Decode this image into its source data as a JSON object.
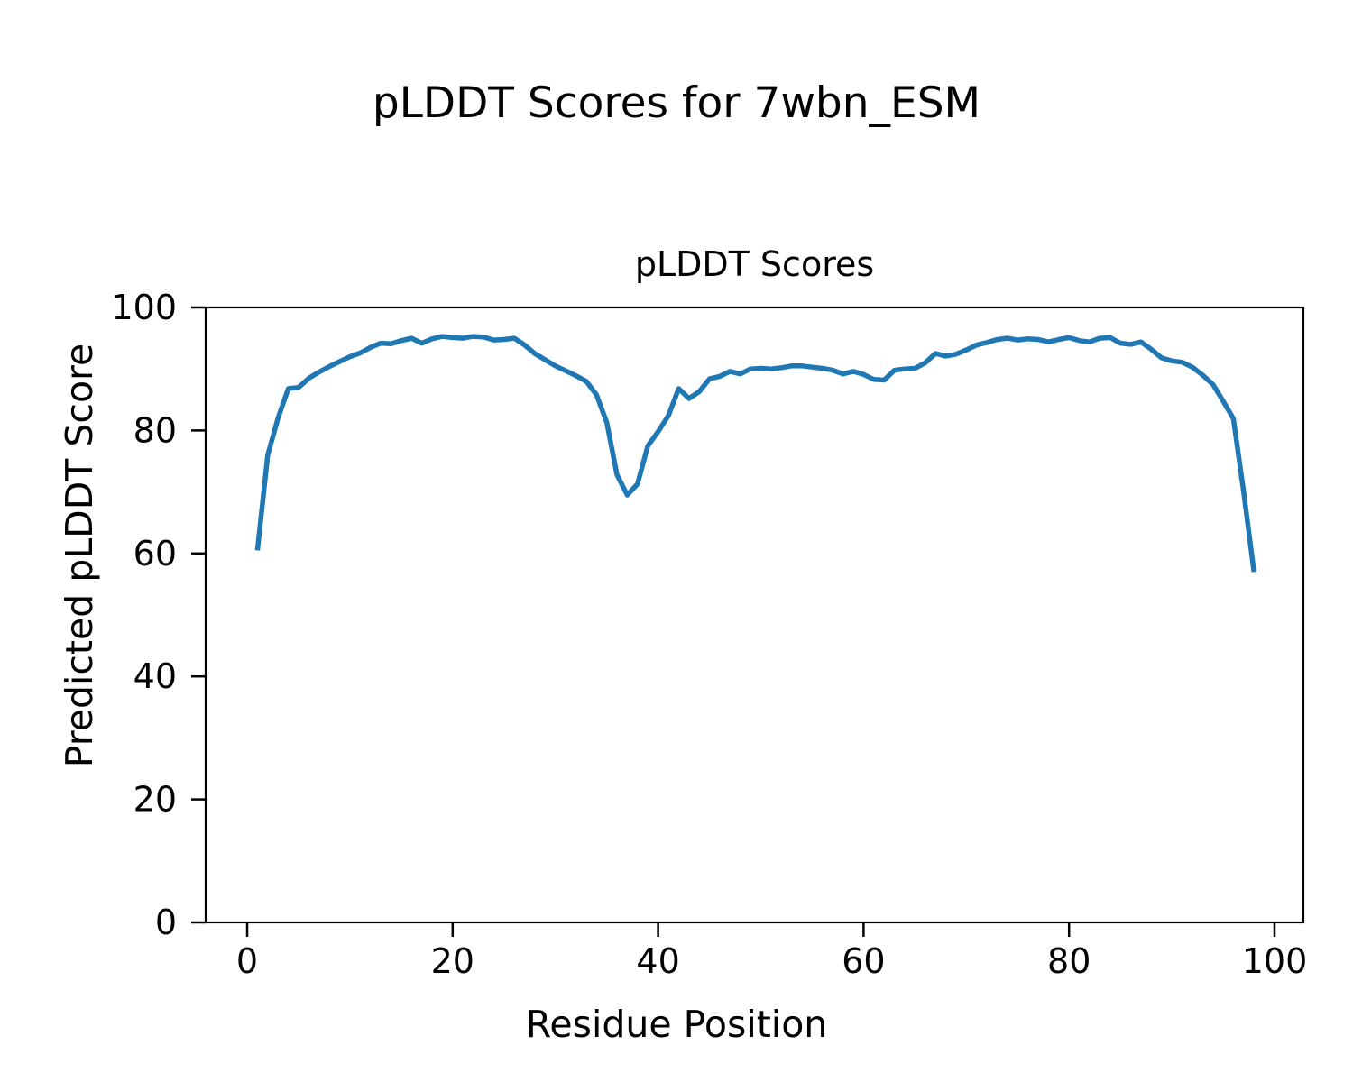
{
  "figure": {
    "title": "pLDDT Scores for 7wbn_ESM",
    "background": "#ffffff"
  },
  "chart_data": {
    "type": "line",
    "title": "pLDDT Scores",
    "xlabel": "Residue Position",
    "ylabel": "Predicted pLDDT Score",
    "xlim": [
      -4.04,
      102.81
    ],
    "ylim": [
      0,
      100
    ],
    "xticks": [
      0,
      20,
      40,
      60,
      80,
      100
    ],
    "yticks": [
      0,
      20,
      40,
      60,
      80,
      100
    ],
    "grid": false,
    "legend_position": "none",
    "line_color": "#1f77b4",
    "axis_color": "#000000",
    "series": [
      {
        "name": "pLDDT",
        "x_start": 1,
        "x_step": 1,
        "y": [
          60.5,
          76.0,
          82.0,
          86.8,
          87.0,
          88.5,
          89.5,
          90.4,
          91.2,
          92.0,
          92.6,
          93.5,
          94.2,
          94.1,
          94.6,
          95.0,
          94.2,
          94.9,
          95.3,
          95.1,
          95.0,
          95.3,
          95.2,
          94.7,
          94.8,
          95.0,
          93.9,
          92.5,
          91.5,
          90.5,
          89.7,
          88.9,
          88.0,
          85.8,
          81.3,
          72.8,
          69.5,
          71.3,
          77.5,
          79.8,
          82.4,
          86.8,
          85.2,
          86.3,
          88.4,
          88.8,
          89.6,
          89.2,
          90.0,
          90.1,
          90.0,
          90.2,
          90.5,
          90.5,
          90.3,
          90.1,
          89.8,
          89.2,
          89.6,
          89.1,
          88.3,
          88.2,
          89.8,
          90.0,
          90.1,
          91.0,
          92.5,
          92.1,
          92.4,
          93.1,
          93.9,
          94.3,
          94.8,
          95.0,
          94.7,
          94.9,
          94.8,
          94.4,
          94.8,
          95.1,
          94.6,
          94.4,
          95.0,
          95.1,
          94.2,
          94.0,
          94.4,
          93.2,
          91.8,
          91.3,
          91.1,
          90.3,
          89.0,
          87.5,
          84.8,
          81.9,
          70.0,
          57.0
        ]
      }
    ]
  }
}
